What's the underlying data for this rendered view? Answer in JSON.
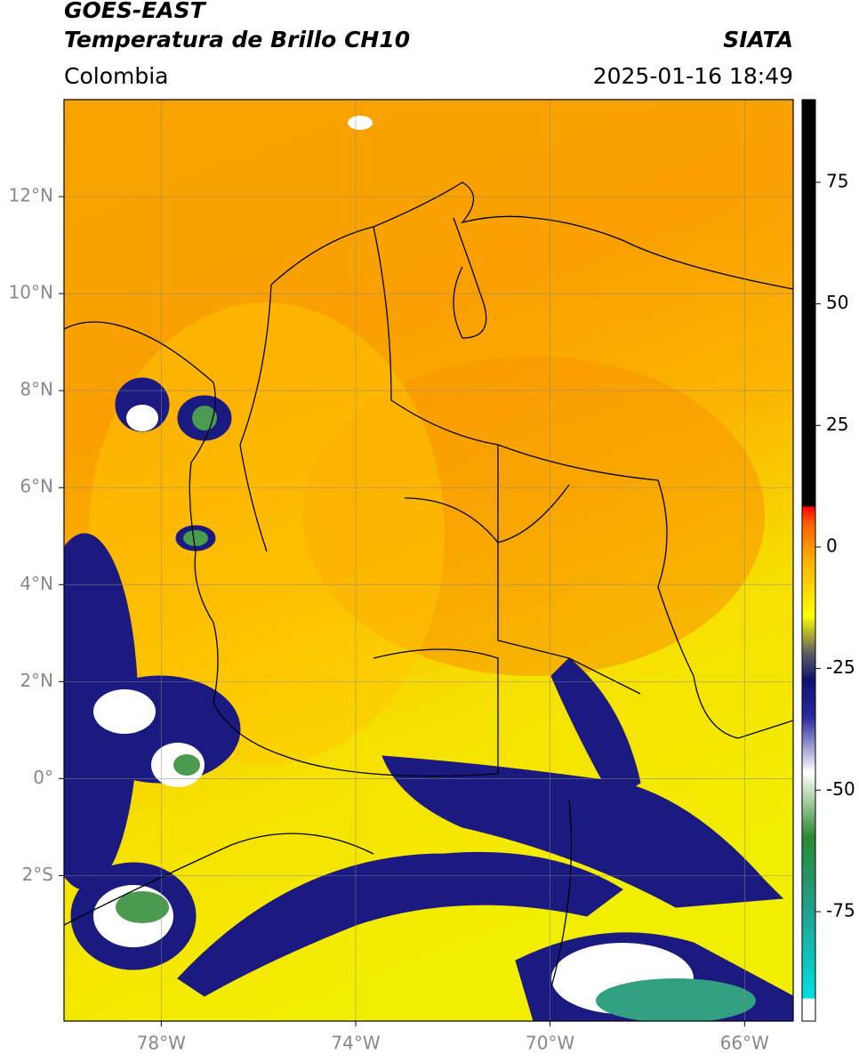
{
  "header": {
    "title": "GOES-EAST",
    "subtitle": "Temperatura de Brillo CH10",
    "region": "Colombia",
    "source": "SIATA",
    "datetime": "2025-01-16 18:49"
  },
  "map": {
    "lonlim": [
      -80,
      -65
    ],
    "latlim": [
      -5,
      14
    ],
    "grid": true,
    "lonticks": [
      {
        "value": -78,
        "label": "78°W"
      },
      {
        "value": -74,
        "label": "74°W"
      },
      {
        "value": -70,
        "label": "70°W"
      },
      {
        "value": -66,
        "label": "66°W"
      }
    ],
    "latticks": [
      {
        "value": 12,
        "label": "12°N"
      },
      {
        "value": 10,
        "label": "10°N"
      },
      {
        "value": 8,
        "label": "8°N"
      },
      {
        "value": 6,
        "label": "6°N"
      },
      {
        "value": 4,
        "label": "4°N"
      },
      {
        "value": 2,
        "label": "2°N"
      },
      {
        "value": 0,
        "label": "0°"
      },
      {
        "value": -2,
        "label": "2°S"
      }
    ]
  },
  "colorbar": {
    "lim": [
      -97.5,
      92
    ],
    "ticks": [
      75,
      50,
      25,
      0,
      -25,
      -50,
      -75
    ]
  }
}
